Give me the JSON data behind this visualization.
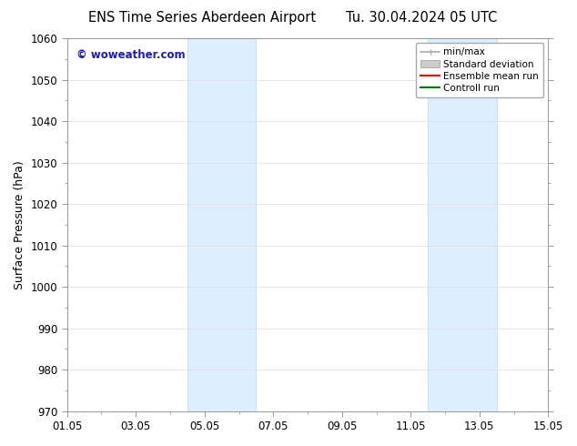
{
  "title_left": "ENS Time Series Aberdeen Airport",
  "title_right": "Tu. 30.04.2024 05 UTC",
  "ylabel": "Surface Pressure (hPa)",
  "ylim": [
    970,
    1060
  ],
  "yticks": [
    970,
    980,
    990,
    1000,
    1010,
    1020,
    1030,
    1040,
    1050,
    1060
  ],
  "xtick_labels": [
    "01.05",
    "03.05",
    "05.05",
    "07.05",
    "09.05",
    "11.05",
    "13.05",
    "15.05"
  ],
  "xtick_positions": [
    0,
    2,
    4,
    6,
    8,
    10,
    12,
    14
  ],
  "xlim": [
    0,
    14
  ],
  "shaded_bands": [
    {
      "x_start": 3.5,
      "x_end": 5.5
    },
    {
      "x_start": 10.5,
      "x_end": 12.5
    }
  ],
  "shaded_color": "#ddeeff",
  "shaded_edge_color": "#c0d8f0",
  "watermark_text": "© woweather.com",
  "watermark_color": "#1a1acc",
  "legend_entries": [
    {
      "label": "min/max",
      "color": "#aaaaaa",
      "lw": 1.2
    },
    {
      "label": "Standard deviation",
      "color": "#cccccc",
      "lw": 6
    },
    {
      "label": "Ensemble mean run",
      "color": "red",
      "lw": 1.5
    },
    {
      "label": "Controll run",
      "color": "green",
      "lw": 1.5
    }
  ],
  "bg_color": "#ffffff",
  "grid_color": "#dddddd",
  "title_fontsize": 10.5,
  "tick_fontsize": 8.5,
  "legend_fontsize": 7.5,
  "ylabel_fontsize": 9
}
